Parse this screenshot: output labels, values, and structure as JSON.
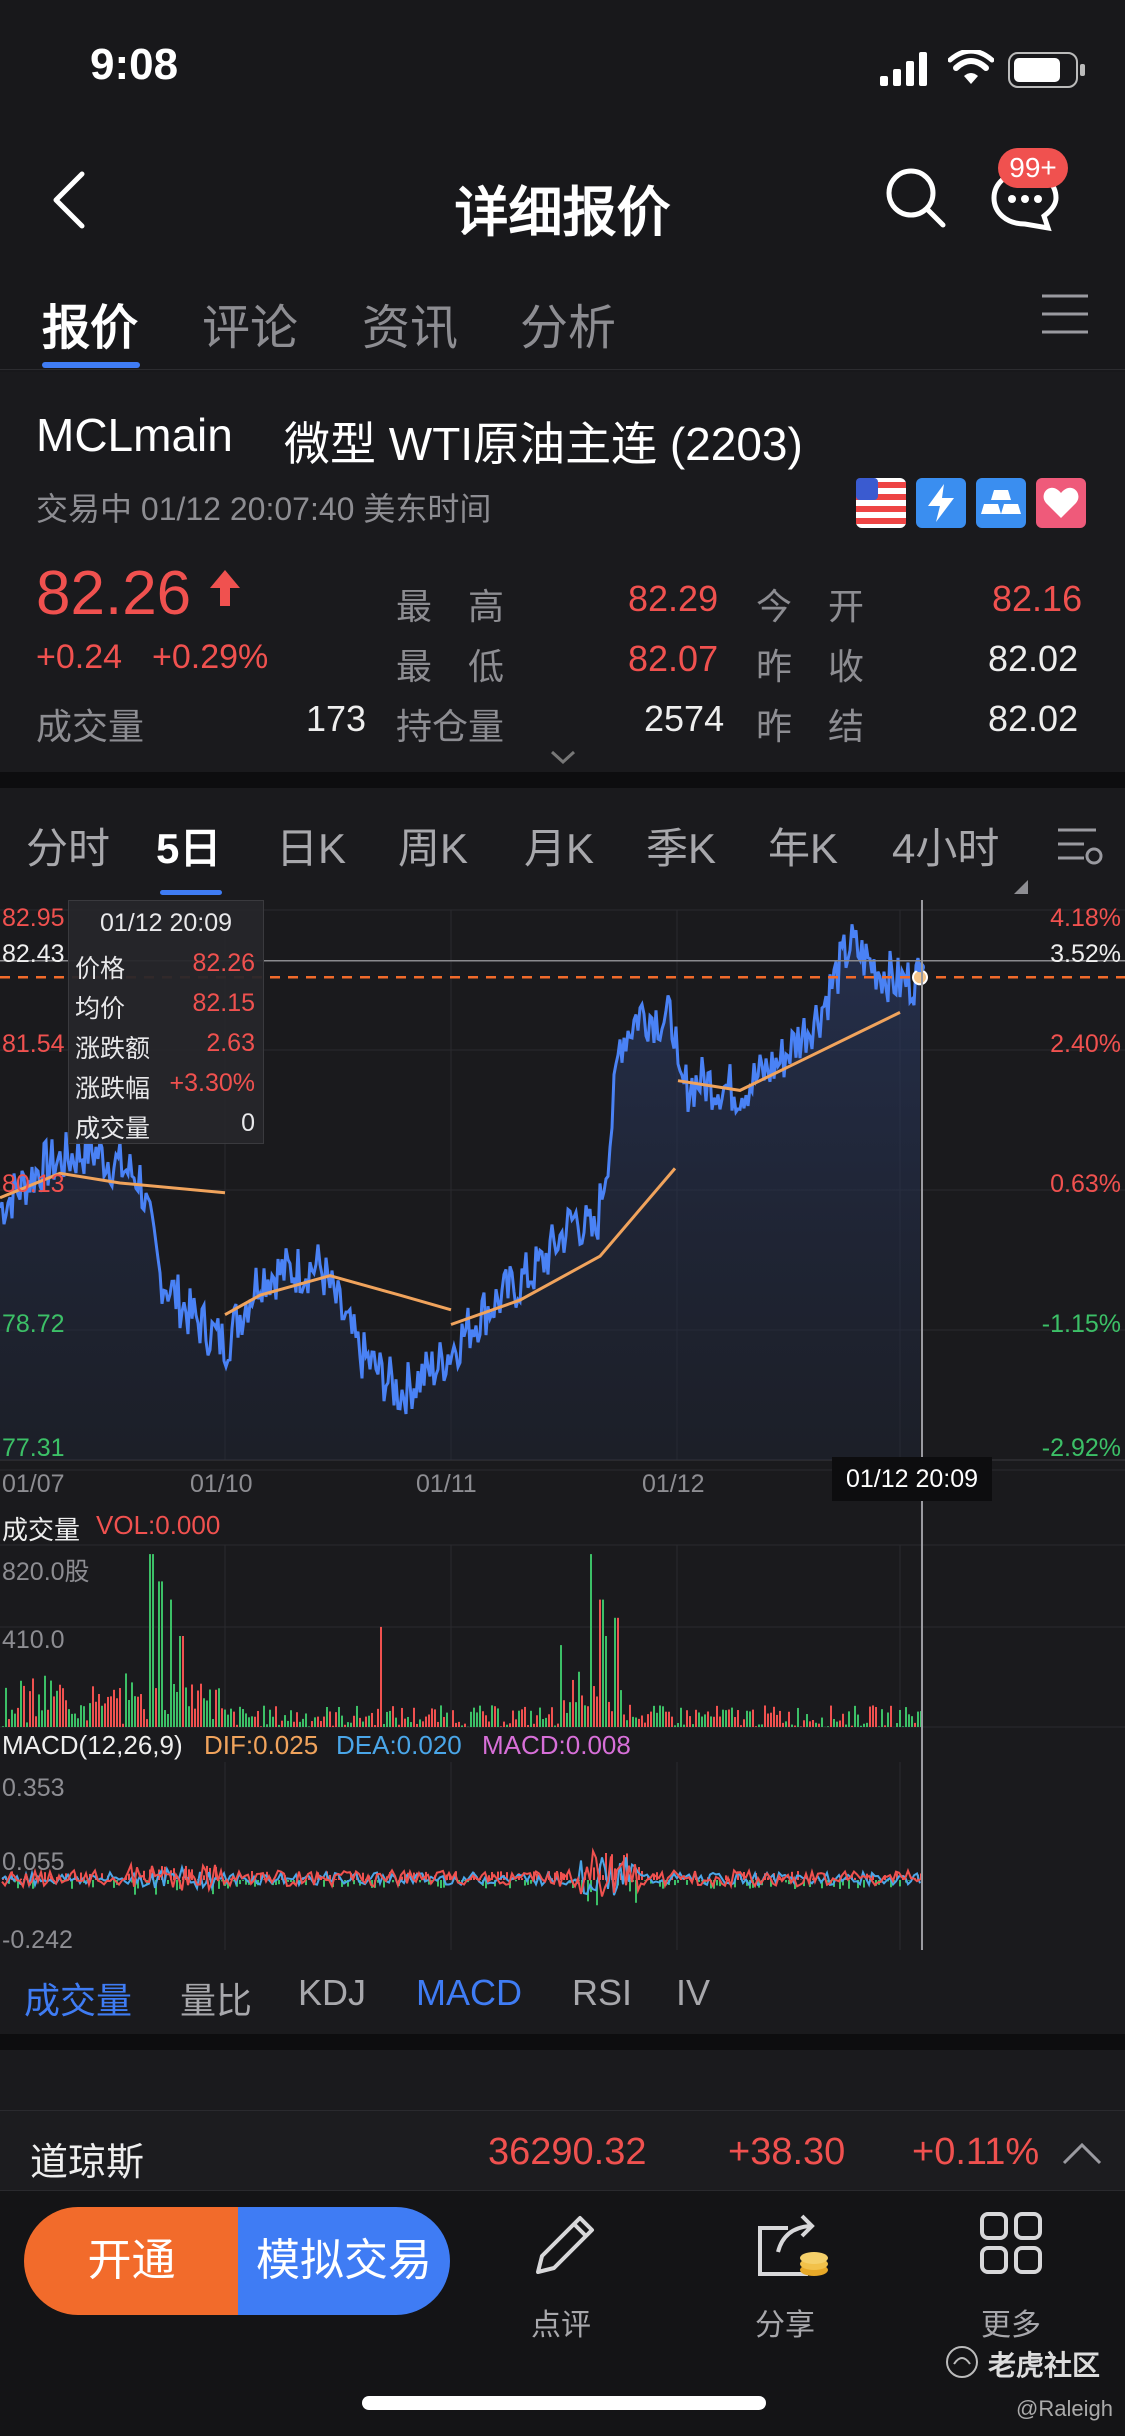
{
  "status_bar": {
    "time": "9:08"
  },
  "nav": {
    "title": "详细报价",
    "badge": "99+"
  },
  "tabs": [
    {
      "label": "报价",
      "active": true
    },
    {
      "label": "评论"
    },
    {
      "label": "资讯"
    },
    {
      "label": "分析"
    }
  ],
  "quote": {
    "symbol": "MCLmain",
    "name": "微型 WTI原油主连 (2203)",
    "status": "交易中 01/12 20:07:40 美东时间",
    "price": "82.26",
    "change": "+0.24",
    "change_pct": "+0.29%",
    "volume_label": "成交量",
    "volume": "173",
    "high_label": "最　高",
    "high": "82.29",
    "low_label": "最　低",
    "low": "82.07",
    "oi_label": "持仓量",
    "oi": "2574",
    "open_label": "今　开",
    "open": "82.16",
    "prev_close_label": "昨　收",
    "prev_close": "82.02",
    "prev_settle_label": "昨　结",
    "prev_settle": "82.02"
  },
  "period_tabs": [
    "分时",
    "5日",
    "日K",
    "周K",
    "月K",
    "季K",
    "年K",
    "4小时"
  ],
  "period_active": "5日",
  "chart": {
    "y_left": [
      "82.95",
      "82.43",
      "81.54",
      "80.13",
      "78.72",
      "77.31"
    ],
    "y_right": [
      "4.18%",
      "3.52%",
      "2.40%",
      "0.63%",
      "-1.15%",
      "-2.92%"
    ],
    "x_labels": [
      "01/07",
      "01/10",
      "01/11",
      "01/12"
    ],
    "cursor_time": "01/12 20:09",
    "tooltip": {
      "time": "01/12 20:09",
      "rows": [
        {
          "label": "价格",
          "value": "82.26"
        },
        {
          "label": "均价",
          "value": "82.15"
        },
        {
          "label": "涨跌额",
          "value": "2.63"
        },
        {
          "label": "涨跌幅",
          "value": "+3.30%"
        },
        {
          "label": "成交量",
          "value": "0"
        }
      ]
    },
    "vol_title": "成交量",
    "vol_value": "VOL:0.000",
    "vol_ticks": [
      "820.0股",
      "410.0"
    ],
    "macd_title": "MACD(12,26,9)",
    "dif": "DIF:0.025",
    "dea": "DEA:0.020",
    "macd": "MACD:0.008",
    "macd_ticks": [
      "0.353",
      "0.055",
      "-0.242"
    ],
    "colors": {
      "price_line": "#4a82f5",
      "avg_line": "#f0a35c",
      "up": "#f0514f",
      "down": "#3cc067"
    }
  },
  "chart_data": {
    "type": "line",
    "x": [
      "01/07",
      "01/10",
      "01/11",
      "01/12",
      "01/12 20:09"
    ],
    "series": [
      {
        "name": "价格",
        "values": [
          80.3,
          78.7,
          78.3,
          81.2,
          82.26
        ]
      },
      {
        "name": "均价",
        "values": [
          80.1,
          79.1,
          78.8,
          81.0,
          82.15
        ]
      }
    ],
    "ylim": [
      77.31,
      82.95
    ]
  },
  "indicator_tabs": [
    {
      "label": "成交量",
      "blue": true
    },
    {
      "label": "量比"
    },
    {
      "label": "KDJ"
    },
    {
      "label": "MACD",
      "blue": true
    },
    {
      "label": "RSI"
    },
    {
      "label": "IV"
    }
  ],
  "index_bar": {
    "name": "道琼斯",
    "value": "36290.32",
    "change": "+38.30",
    "change_pct": "+0.11%"
  },
  "bottom": {
    "open": "开通",
    "sim": "模拟交易",
    "comment": "点评",
    "share": "分享",
    "more": "更多",
    "watermark": "老虎社区",
    "author": "@Raleigh"
  }
}
